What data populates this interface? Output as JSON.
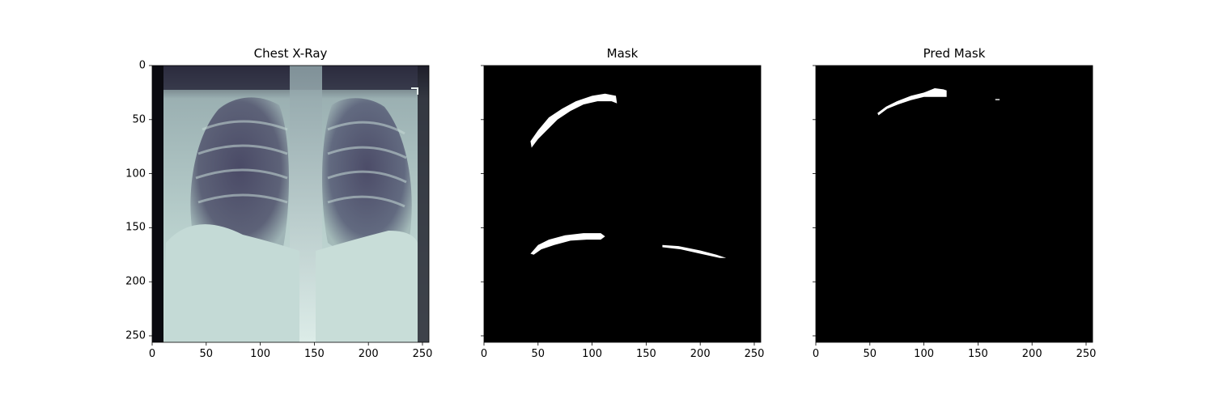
{
  "chart_data": [
    {
      "type": "image",
      "title": "Chest X-Ray",
      "colormap": "bone",
      "x_ticks": [
        "0",
        "50",
        "100",
        "150",
        "200",
        "250"
      ],
      "y_ticks": [
        "0",
        "50",
        "100",
        "150",
        "200",
        "250"
      ],
      "xlim": [
        0,
        256
      ],
      "ylim": [
        256,
        0
      ]
    },
    {
      "type": "image",
      "title": "Mask",
      "colormap": "gray",
      "x_ticks": [
        "0",
        "50",
        "100",
        "150",
        "200",
        "250"
      ],
      "y_ticks": [
        "",
        "",
        "",
        "",
        "",
        ""
      ],
      "xlim": [
        0,
        256
      ],
      "ylim": [
        256,
        0
      ],
      "regions": [
        {
          "name": "upper-left-lesion",
          "points": [
            [
              43,
              70
            ],
            [
              50,
              60
            ],
            [
              60,
              48
            ],
            [
              72,
              40
            ],
            [
              85,
              33
            ],
            [
              100,
              28
            ],
            [
              112,
              26
            ],
            [
              122,
              28
            ],
            [
              123,
              35
            ],
            [
              118,
              33
            ],
            [
              105,
              33
            ],
            [
              92,
              36
            ],
            [
              80,
              42
            ],
            [
              68,
              50
            ],
            [
              58,
              60
            ],
            [
              50,
              68
            ],
            [
              44,
              76
            ]
          ]
        },
        {
          "name": "lower-left-lesion",
          "points": [
            [
              43,
              174
            ],
            [
              50,
              166
            ],
            [
              60,
              161
            ],
            [
              75,
              157
            ],
            [
              92,
              155
            ],
            [
              108,
              155
            ],
            [
              112,
              158
            ],
            [
              108,
              161
            ],
            [
              95,
              161
            ],
            [
              80,
              162
            ],
            [
              65,
              166
            ],
            [
              53,
              170
            ],
            [
              46,
              175
            ]
          ]
        },
        {
          "name": "lower-right-lesion",
          "points": [
            [
              165,
              166
            ],
            [
              180,
              167
            ],
            [
              200,
              171
            ],
            [
              215,
              175
            ],
            [
              224,
              178
            ],
            [
              218,
              178
            ],
            [
              200,
              174
            ],
            [
              182,
              170
            ],
            [
              165,
              168
            ]
          ]
        }
      ]
    },
    {
      "type": "image",
      "title": "Pred Mask",
      "colormap": "gray",
      "x_ticks": [
        "0",
        "50",
        "100",
        "150",
        "200",
        "250"
      ],
      "y_ticks": [
        "",
        "",
        "",
        "",
        "",
        ""
      ],
      "xlim": [
        0,
        256
      ],
      "ylim": [
        256,
        0
      ],
      "regions": [
        {
          "name": "upper-left-lesion",
          "points": [
            [
              57,
              44
            ],
            [
              65,
              38
            ],
            [
              75,
              33
            ],
            [
              88,
              28
            ],
            [
              100,
              25
            ],
            [
              110,
              21
            ],
            [
              118,
              22
            ],
            [
              121,
              23
            ],
            [
              121,
              29
            ],
            [
              112,
              29
            ],
            [
              100,
              29
            ],
            [
              88,
              32
            ],
            [
              76,
              36
            ],
            [
              66,
              40
            ],
            [
              58,
              46
            ]
          ]
        },
        {
          "name": "small-speck",
          "points": [
            [
              166,
              31
            ],
            [
              170,
              31
            ],
            [
              170,
              32
            ],
            [
              166,
              32
            ]
          ]
        }
      ]
    }
  ],
  "colors": {
    "background": "#ffffff",
    "mask_bg": "#000000",
    "mask_fg": "#ffffff",
    "axis": "#000000"
  }
}
